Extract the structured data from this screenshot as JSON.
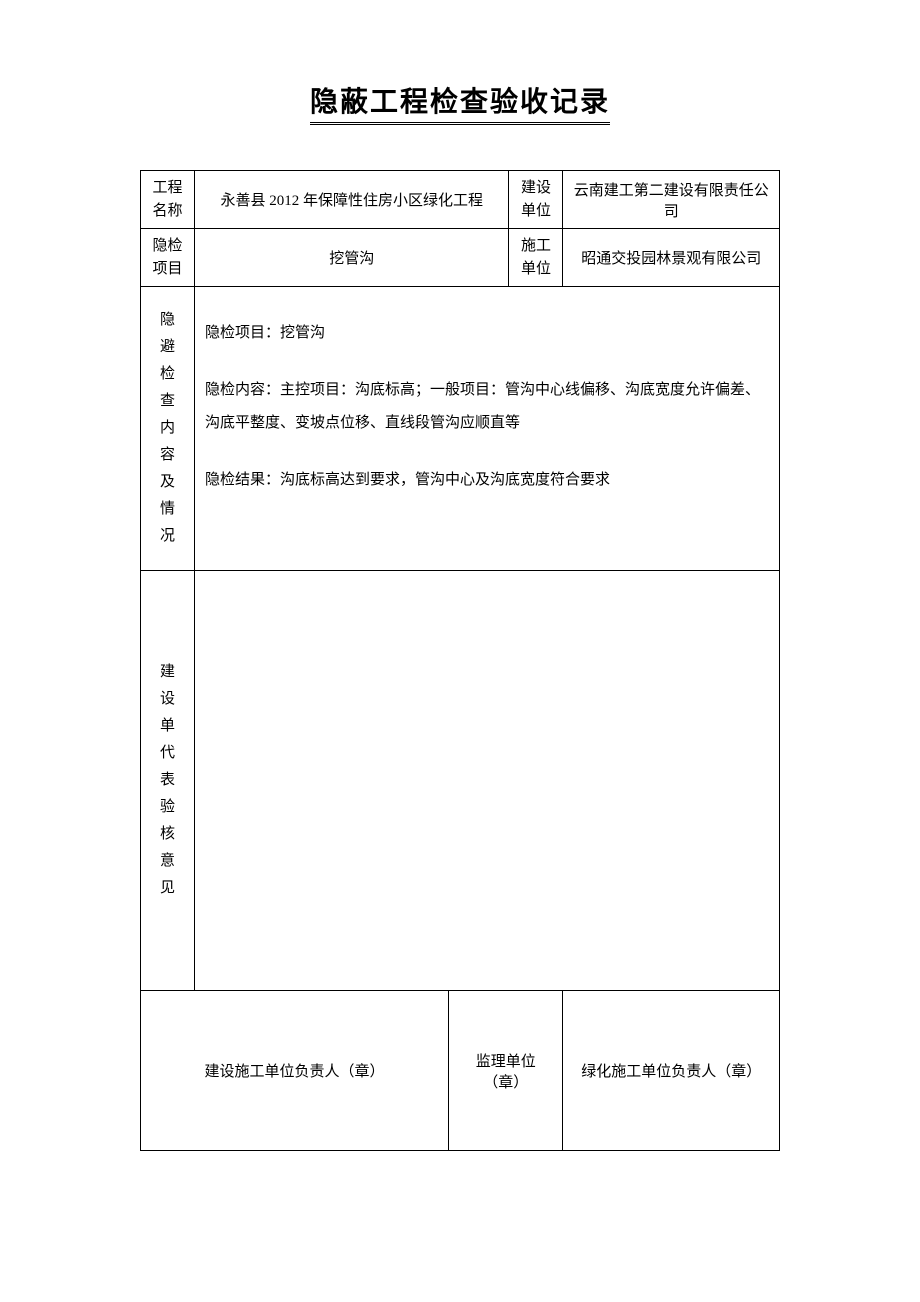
{
  "title": "隐蔽工程检查验收记录",
  "headerRows": {
    "row1": {
      "label1": "工程名称",
      "value1": "永善县 2012 年保障性住房小区绿化工程",
      "label2": "建设单位",
      "value2": "云南建工第二建设有限责任公司"
    },
    "row2": {
      "label1": "隐检项目",
      "value1": "挖管沟",
      "label2": "施工单位",
      "value2": "昭通交投园林景观有限公司"
    }
  },
  "inspection": {
    "label": "隐避检查内容及情况",
    "line1": "隐检项目：挖管沟",
    "line2": "隐检内容：主控项目：沟底标高；一般项目：管沟中心线偏移、沟底宽度允许偏差、沟底平整度、变坡点位移、直线段管沟应顺直等",
    "line3": "隐检结果：沟底标高达到要求，管沟中心及沟底宽度符合要求"
  },
  "opinion": {
    "label": "建设单代表验核意见"
  },
  "signatures": {
    "sig1": "建设施工单位负责人（章）",
    "sig2": "监理单位（章）",
    "sig3": "绿化施工单位负责人（章）"
  }
}
